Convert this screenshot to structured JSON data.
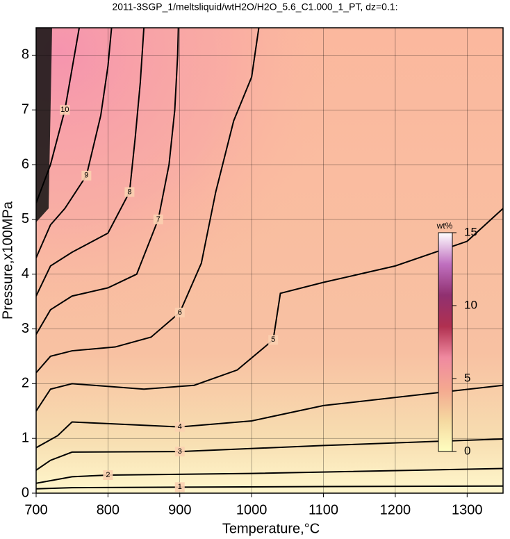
{
  "chart_data": {
    "type": "contour",
    "title": "2011-3SGP_1/meltsliquid/wtH2O/H2O_5.6_C1.000_1_PT, dz=0.1:",
    "x_label": "Temperature,°C",
    "y_label": "Pressure,x100MPa",
    "xlim": [
      700,
      1350
    ],
    "ylim": [
      0,
      8.5
    ],
    "xticks": [
      700,
      800,
      900,
      1000,
      1100,
      1200,
      1300
    ],
    "yticks": [
      0,
      1,
      2,
      3,
      4,
      5,
      6,
      7,
      8
    ],
    "grid": true,
    "contours": [
      {
        "name": "1",
        "x": [
          700,
          750,
          900,
          1100,
          1350
        ],
        "y": [
          0.08,
          0.1,
          0.11,
          0.12,
          0.13
        ]
      },
      {
        "name": "2",
        "x": [
          700,
          750,
          800,
          1000,
          1350
        ],
        "y": [
          0.18,
          0.3,
          0.33,
          0.36,
          0.45
        ]
      },
      {
        "name": "3",
        "x": [
          700,
          720,
          750,
          900,
          1100,
          1350
        ],
        "y": [
          0.42,
          0.6,
          0.75,
          0.76,
          0.87,
          0.99
        ]
      },
      {
        "name": "4",
        "x": [
          700,
          730,
          750,
          800,
          900,
          1000,
          1100,
          1350
        ],
        "y": [
          0.83,
          1.05,
          1.3,
          1.27,
          1.21,
          1.32,
          1.6,
          1.97
        ]
      },
      {
        "name": "5",
        "x": [
          700,
          720,
          750,
          850,
          920,
          980,
          1030,
          1040,
          1100,
          1200,
          1300,
          1350
        ],
        "y": [
          1.5,
          1.9,
          2.0,
          1.9,
          1.97,
          2.25,
          2.8,
          3.65,
          3.85,
          4.15,
          4.6,
          5.2
        ]
      },
      {
        "name": "6",
        "x": [
          700,
          720,
          750,
          810,
          860,
          900,
          930,
          950,
          975,
          1000,
          1010
        ],
        "y": [
          2.2,
          2.5,
          2.6,
          2.67,
          2.85,
          3.3,
          4.2,
          5.5,
          6.8,
          7.6,
          8.5
        ]
      },
      {
        "name": "7",
        "x": [
          700,
          720,
          750,
          800,
          840,
          870,
          885,
          893,
          897,
          898
        ],
        "y": [
          2.9,
          3.35,
          3.6,
          3.75,
          4.0,
          5.0,
          6.0,
          7.0,
          8.0,
          8.5
        ]
      },
      {
        "name": "8",
        "x": [
          700,
          720,
          750,
          800,
          830,
          838,
          845,
          850
        ],
        "y": [
          3.6,
          4.15,
          4.4,
          4.75,
          5.5,
          6.5,
          7.5,
          8.5
        ]
      },
      {
        "name": "9",
        "x": [
          700,
          720,
          740,
          770,
          790,
          800,
          805
        ],
        "y": [
          4.3,
          4.9,
          5.2,
          5.8,
          6.9,
          7.8,
          8.5
        ]
      },
      {
        "name": "10",
        "x": [
          700,
          720,
          740,
          760
        ],
        "y": [
          5.3,
          6.0,
          7.0,
          8.5
        ]
      }
    ],
    "colorbar": {
      "label": "wt%",
      "lim": [
        0,
        15
      ],
      "ticks": [
        0,
        5,
        10,
        15
      ],
      "colors": [
        "#ffffc0",
        "#f5d8a0",
        "#f4a890",
        "#f08aa0",
        "#b03050",
        "#903070",
        "#c070c0",
        "#ffffff"
      ]
    }
  }
}
